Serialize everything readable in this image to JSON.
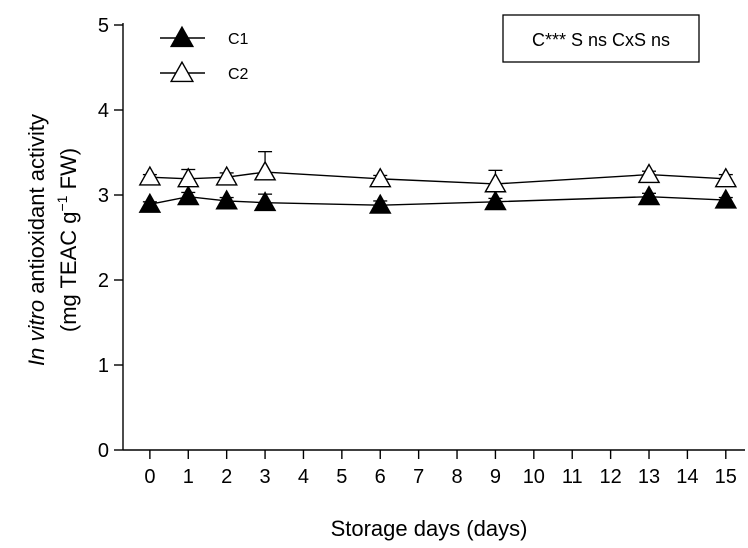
{
  "chart_data": {
    "type": "line",
    "title": "",
    "xlabel": "Storage days (days)",
    "ylabel_line1_italic": "In vitro",
    "ylabel_line1_rest": " antioxidant activity",
    "ylabel_line2_pre": "(mg TEAC g",
    "ylabel_line2_sup": "−1",
    "ylabel_line2_post": " FW)",
    "xlim": [
      -0.7,
      15.5
    ],
    "ylim": [
      0,
      5
    ],
    "x_ticks": [
      "0",
      "1",
      "2",
      "3",
      "4",
      "5",
      "6",
      "7",
      "8",
      "9",
      "10",
      "11",
      "12",
      "13",
      "14",
      "15"
    ],
    "y_ticks": [
      "0",
      "1",
      "2",
      "3",
      "4",
      "5"
    ],
    "grid": false,
    "legend_position": "top-left",
    "annotation": "C*** S ns CxS ns",
    "series": [
      {
        "name": "C1",
        "marker": "filled-triangle",
        "color": "#000000",
        "points": [
          {
            "x": 0,
            "y": 2.89,
            "err": 0.03
          },
          {
            "x": 1,
            "y": 2.98,
            "err": 0.05
          },
          {
            "x": 2,
            "y": 2.93,
            "err": 0.04
          },
          {
            "x": 3,
            "y": 2.91,
            "err": 0.1
          },
          {
            "x": 6,
            "y": 2.88,
            "err": 0.05
          },
          {
            "x": 9,
            "y": 2.92,
            "err": 0.04
          },
          {
            "x": 13,
            "y": 2.98,
            "err": 0.04
          },
          {
            "x": 15,
            "y": 2.94,
            "err": 0.03
          }
        ]
      },
      {
        "name": "C2",
        "marker": "open-triangle",
        "color": "#000000",
        "points": [
          {
            "x": 0,
            "y": 3.21,
            "err": 0.03
          },
          {
            "x": 1,
            "y": 3.19,
            "err": 0.11
          },
          {
            "x": 2,
            "y": 3.21,
            "err": 0.05
          },
          {
            "x": 3,
            "y": 3.27,
            "err": 0.24
          },
          {
            "x": 6,
            "y": 3.19,
            "err": 0.04
          },
          {
            "x": 9,
            "y": 3.13,
            "err": 0.16
          },
          {
            "x": 13,
            "y": 3.24,
            "err": 0.04
          },
          {
            "x": 15,
            "y": 3.19,
            "err": 0.05
          }
        ]
      }
    ]
  }
}
